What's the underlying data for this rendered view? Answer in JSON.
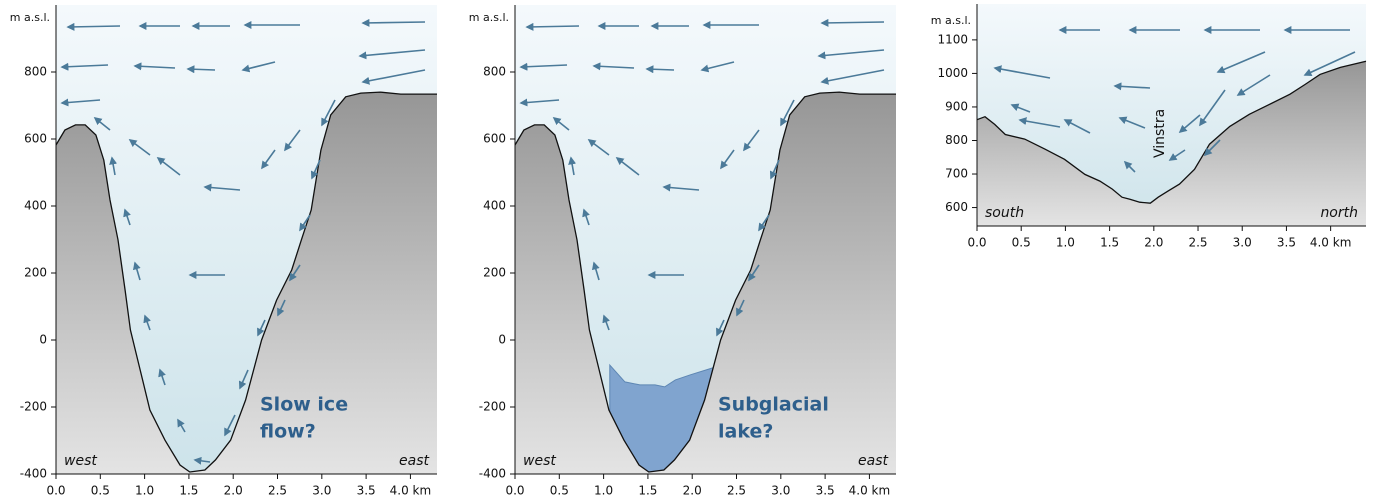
{
  "chart_data": [
    {
      "type": "area",
      "ylabel": "m a.s.l.",
      "xlim": [
        0,
        4.3
      ],
      "ylim": [
        -400,
        1000
      ],
      "xticks": [
        {
          "value": 0,
          "label": "0.0"
        },
        {
          "value": 0.5,
          "label": "0.5"
        },
        {
          "value": 1,
          "label": "1.0"
        },
        {
          "value": 1.5,
          "label": "1.5"
        },
        {
          "value": 2,
          "label": "2.0"
        },
        {
          "value": 2.5,
          "label": "2.5"
        },
        {
          "value": 3,
          "label": "3.0"
        },
        {
          "value": 3.5,
          "label": "3.5"
        },
        {
          "value": 4,
          "label": "4.0 km"
        }
      ],
      "yticks": [
        -400,
        -200,
        0,
        200,
        400,
        600,
        800
      ],
      "x": [
        0,
        0.1,
        0.22,
        0.33,
        0.45,
        0.54,
        0.61,
        0.7,
        0.78,
        0.84,
        0.95,
        1.06,
        1.23,
        1.4,
        1.51,
        1.68,
        1.8,
        1.97,
        2.14,
        2.32,
        2.49,
        2.66,
        2.77,
        2.88,
        2.99,
        3.1,
        3.27,
        3.44,
        3.66,
        3.89,
        4.3
      ],
      "values": [
        582,
        627,
        642,
        642,
        612,
        537,
        418,
        299,
        149,
        30,
        -90,
        -209,
        -299,
        -373,
        -394,
        -388,
        -358,
        -299,
        -179,
        0,
        119,
        209,
        299,
        388,
        567,
        672,
        726,
        737,
        740,
        734,
        734
      ],
      "left_label": "west",
      "right_label": "east",
      "note": [
        "Slow ice",
        "flow?"
      ]
    },
    {
      "type": "area",
      "ylabel": "m a.s.l.",
      "xlim": [
        0,
        4.3
      ],
      "ylim": [
        -400,
        1000
      ],
      "xticks": [
        {
          "value": 0,
          "label": "0.0"
        },
        {
          "value": 0.5,
          "label": "0.5"
        },
        {
          "value": 1,
          "label": "1.0"
        },
        {
          "value": 1.5,
          "label": "1.5"
        },
        {
          "value": 2,
          "label": "2.0"
        },
        {
          "value": 2.5,
          "label": "2.5"
        },
        {
          "value": 3,
          "label": "3.0"
        },
        {
          "value": 3.5,
          "label": "3.5"
        },
        {
          "value": 4,
          "label": "4.0 km"
        }
      ],
      "yticks": [
        -400,
        -200,
        0,
        200,
        400,
        600,
        800
      ],
      "x": [
        0,
        0.1,
        0.22,
        0.33,
        0.45,
        0.54,
        0.61,
        0.7,
        0.78,
        0.84,
        0.95,
        1.06,
        1.23,
        1.4,
        1.51,
        1.68,
        1.8,
        1.97,
        2.14,
        2.32,
        2.49,
        2.66,
        2.77,
        2.88,
        2.99,
        3.1,
        3.27,
        3.44,
        3.66,
        3.89,
        4.3
      ],
      "values": [
        582,
        627,
        642,
        642,
        612,
        537,
        418,
        299,
        149,
        30,
        -90,
        -209,
        -299,
        -373,
        -394,
        -388,
        -358,
        -299,
        -179,
        0,
        119,
        209,
        299,
        388,
        567,
        672,
        726,
        737,
        740,
        734,
        734
      ],
      "lake": {
        "x": [
          1.07,
          1.24,
          1.41,
          1.58,
          1.69,
          1.81,
          1.98,
          2.26
        ],
        "values": [
          -75,
          -125,
          -134,
          -134,
          -140,
          -119,
          -104,
          -81
        ]
      },
      "left_label": "west",
      "right_label": "east",
      "note": [
        "Subglacial",
        "lake?"
      ]
    },
    {
      "type": "area",
      "ylabel": "m a.s.l.",
      "xlim": [
        0,
        4.4
      ],
      "ylim": [
        545,
        1207
      ],
      "xticks": [
        {
          "value": 0,
          "label": "0.0"
        },
        {
          "value": 0.5,
          "label": "0.5"
        },
        {
          "value": 1,
          "label": "1.0"
        },
        {
          "value": 1.5,
          "label": "1.5"
        },
        {
          "value": 2,
          "label": "2.0"
        },
        {
          "value": 2.5,
          "label": "2.5"
        },
        {
          "value": 3,
          "label": "3.0"
        },
        {
          "value": 3.5,
          "label": "3.5"
        },
        {
          "value": 4,
          "label": "4.0 km"
        }
      ],
      "yticks": [
        600,
        700,
        800,
        900,
        1000,
        1100
      ],
      "x": [
        0,
        0.09,
        0.2,
        0.32,
        0.54,
        0.77,
        0.99,
        1.22,
        1.39,
        1.53,
        1.64,
        1.73,
        1.84,
        1.96,
        2.05,
        2.16,
        2.29,
        2.46,
        2.63,
        2.86,
        3.08,
        3.31,
        3.54,
        3.71,
        3.88,
        4.11,
        4.4
      ],
      "values": [
        862,
        871,
        848,
        818,
        804,
        774,
        744,
        699,
        679,
        655,
        631,
        625,
        616,
        613,
        631,
        649,
        670,
        714,
        789,
        842,
        878,
        908,
        938,
        967,
        997,
        1018,
        1036
      ],
      "left_label": "south",
      "right_label": "north",
      "place": "Vinstra"
    }
  ]
}
